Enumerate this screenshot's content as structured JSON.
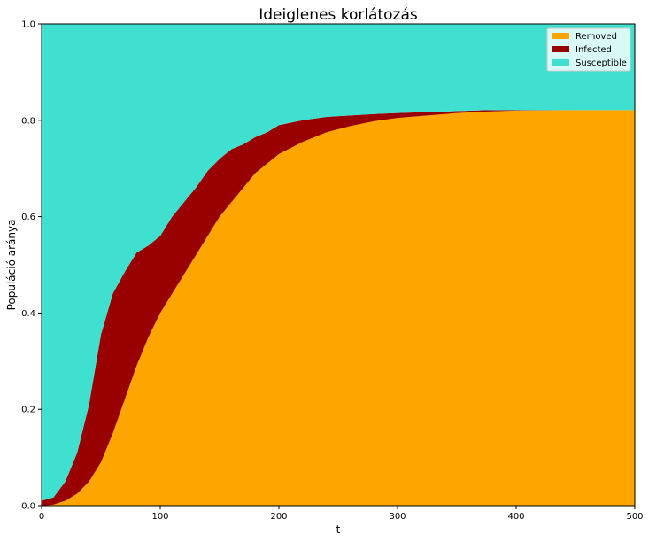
{
  "chart_data": {
    "type": "area",
    "stacked": true,
    "title": "Ideiglenes korlátozás",
    "xlabel": "t",
    "ylabel": "Populáció aránya",
    "xlim": [
      0,
      500
    ],
    "ylim": [
      0,
      1.0
    ],
    "xticks": [
      "0",
      "100",
      "200",
      "300",
      "400",
      "500"
    ],
    "yticks": [
      "0.0",
      "0.2",
      "0.4",
      "0.6",
      "0.8",
      "1.0"
    ],
    "grid": false,
    "legend_position": "top-right",
    "x": [
      0,
      10,
      20,
      30,
      40,
      50,
      60,
      70,
      80,
      90,
      100,
      110,
      120,
      130,
      140,
      150,
      160,
      170,
      180,
      190,
      200,
      220,
      240,
      260,
      280,
      300,
      325,
      350,
      375,
      400,
      450,
      500
    ],
    "series": [
      {
        "name": "Removed",
        "color": "#FFA500",
        "values": [
          0.0,
          0.002,
          0.01,
          0.025,
          0.05,
          0.09,
          0.15,
          0.22,
          0.29,
          0.35,
          0.4,
          0.44,
          0.48,
          0.52,
          0.56,
          0.6,
          0.63,
          0.66,
          0.69,
          0.71,
          0.73,
          0.755,
          0.775,
          0.788,
          0.798,
          0.805,
          0.81,
          0.815,
          0.818,
          0.82,
          0.821,
          0.821
        ]
      },
      {
        "name": "Infected",
        "color": "#990000",
        "values": [
          0.01,
          0.015,
          0.04,
          0.085,
          0.16,
          0.265,
          0.29,
          0.265,
          0.235,
          0.19,
          0.16,
          0.16,
          0.15,
          0.14,
          0.135,
          0.12,
          0.11,
          0.09,
          0.075,
          0.065,
          0.06,
          0.045,
          0.032,
          0.022,
          0.015,
          0.01,
          0.007,
          0.004,
          0.003,
          0.001,
          0.0,
          0.0
        ]
      },
      {
        "name": "Susceptible",
        "color": "#40E0D0",
        "values": [
          0.99,
          0.983,
          0.95,
          0.89,
          0.79,
          0.645,
          0.56,
          0.515,
          0.475,
          0.46,
          0.44,
          0.4,
          0.37,
          0.34,
          0.305,
          0.28,
          0.26,
          0.25,
          0.235,
          0.225,
          0.21,
          0.2,
          0.193,
          0.19,
          0.187,
          0.185,
          0.183,
          0.181,
          0.179,
          0.179,
          0.179,
          0.179
        ]
      }
    ],
    "legend_order": [
      "Removed",
      "Infected",
      "Susceptible"
    ]
  }
}
